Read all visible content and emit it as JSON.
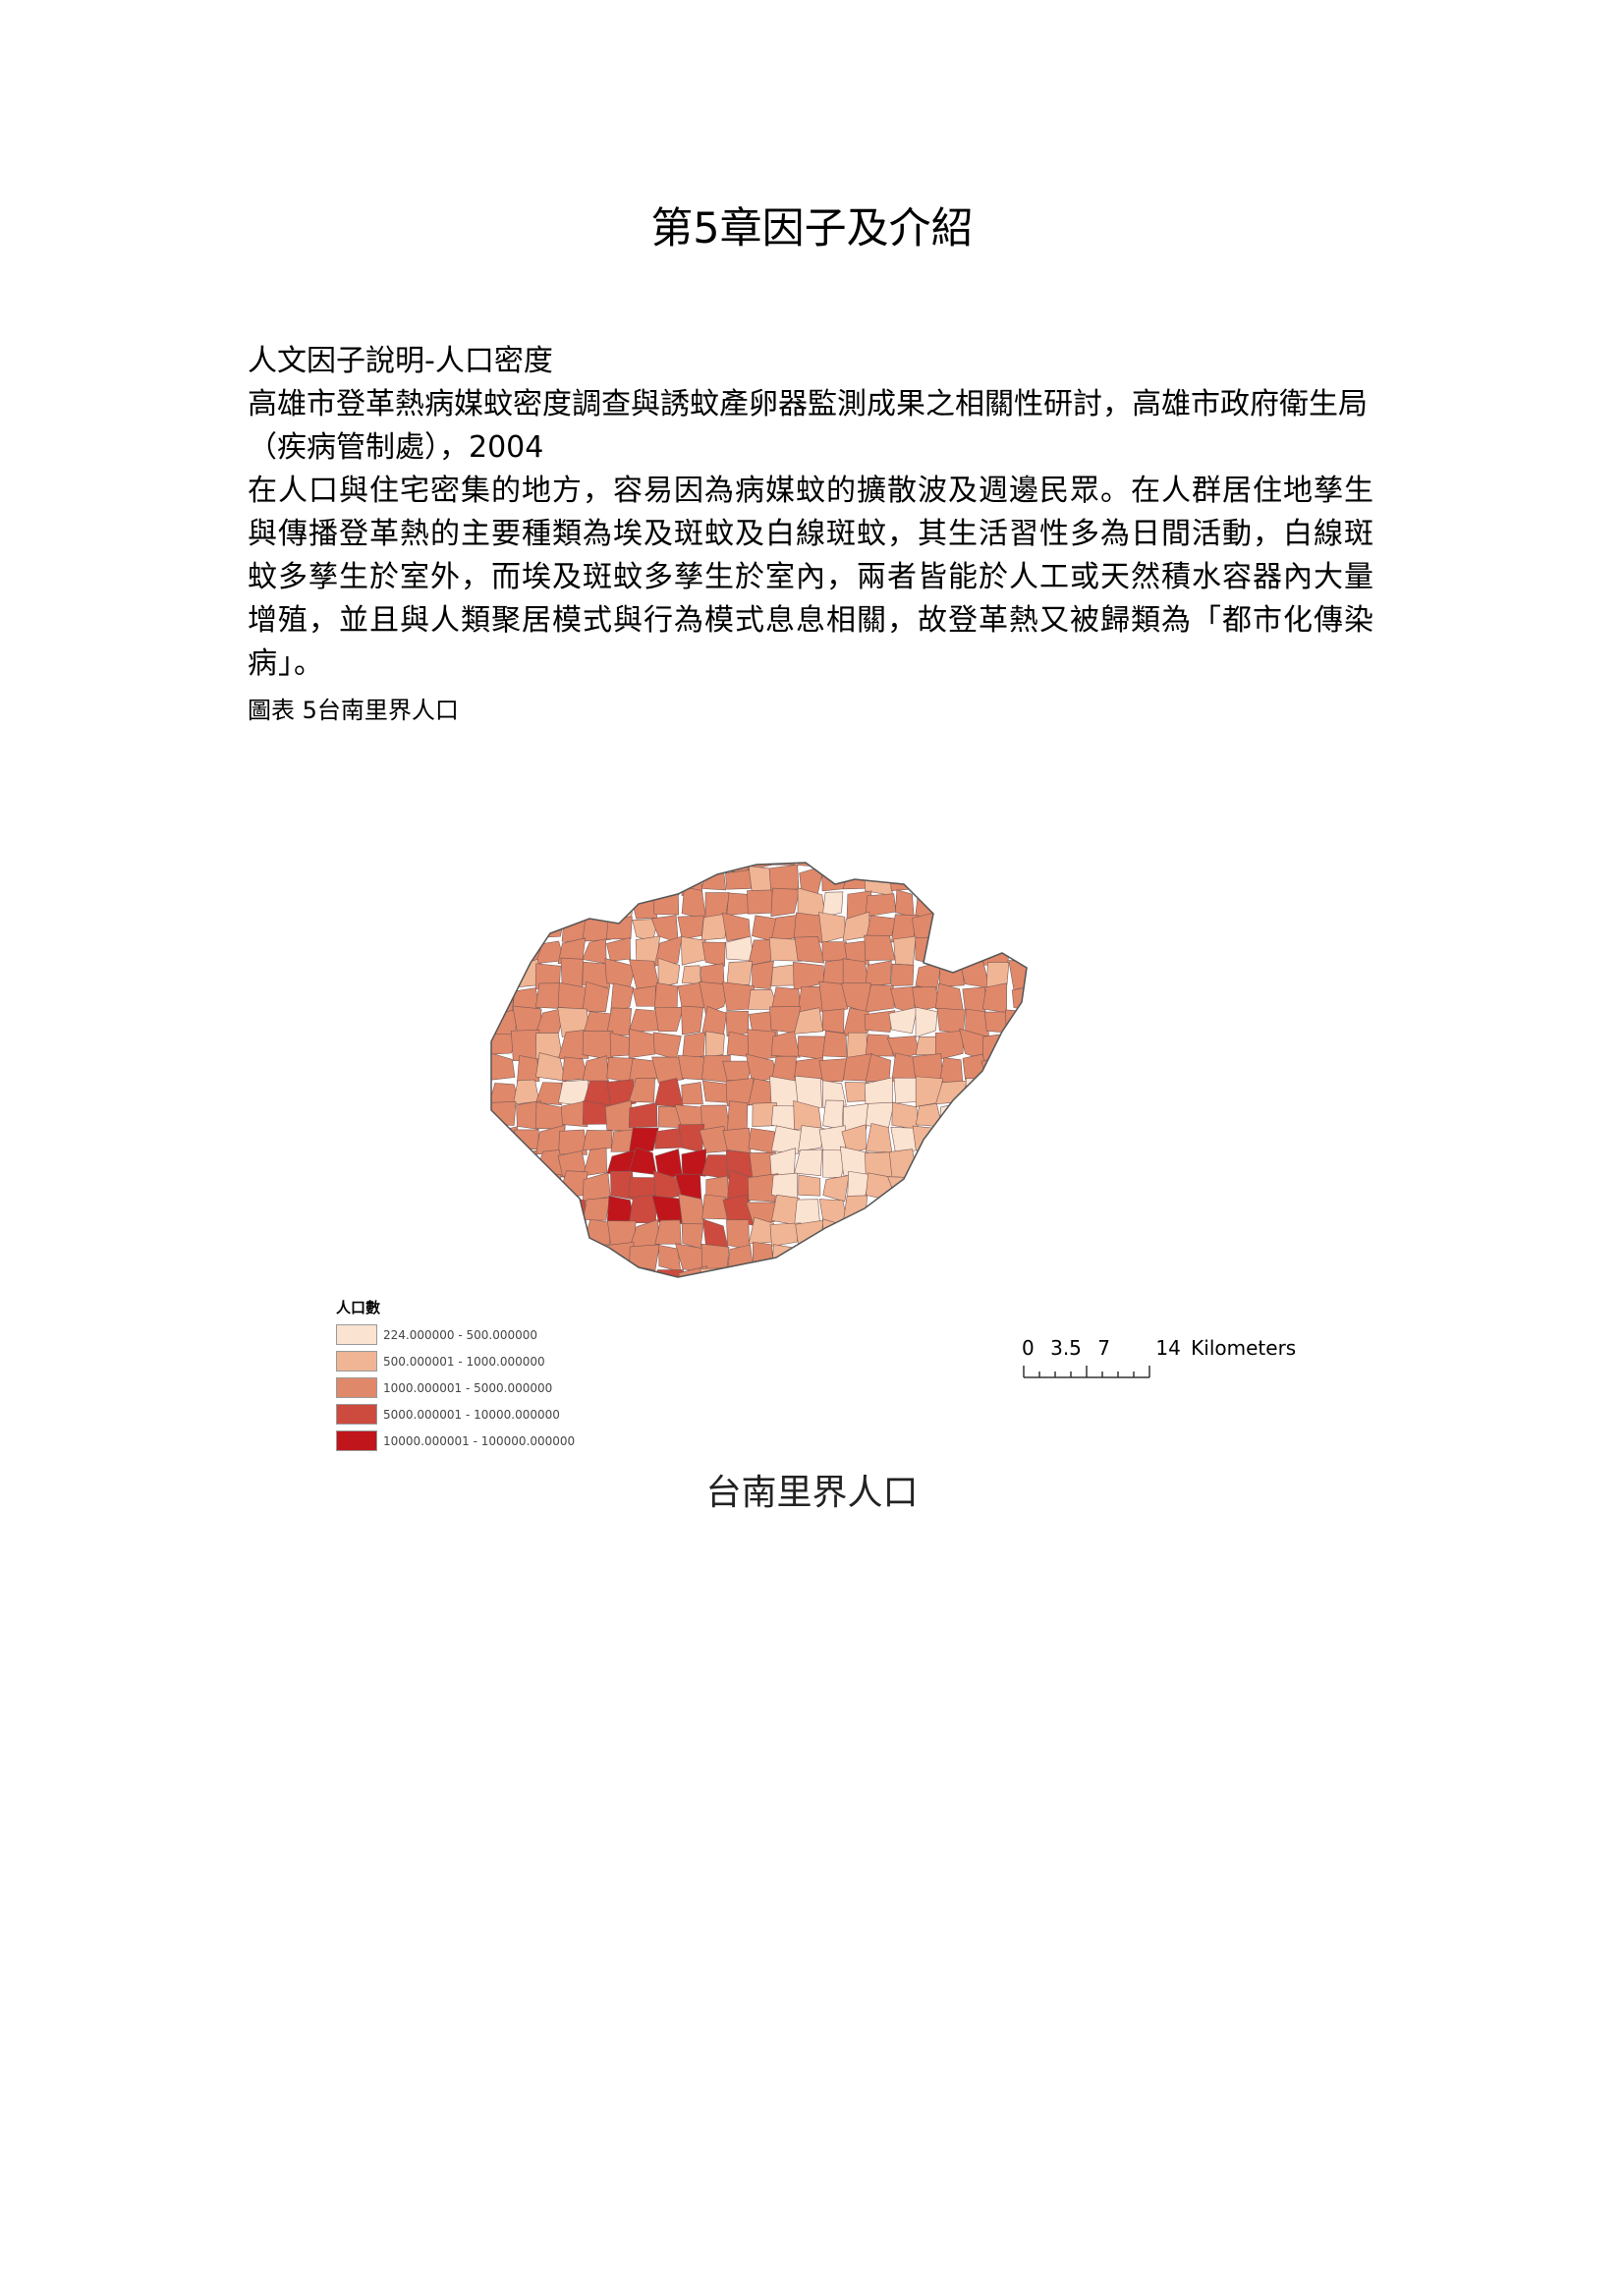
{
  "page_title": "第5章因子及介紹",
  "subtitle": "人文因子說明-人口密度",
  "reference": "高雄市登革熱病媒蚊密度調查與誘蚊產卵器監測成果之相關性研討，高雄市政府衛生局（疾病管制處），2004",
  "body": "在人口與住宅密集的地方，容易因為病媒蚊的擴散波及週邊民眾。在人群居住地孳生與傳播登革熱的主要種類為埃及斑蚊及白線斑蚊，其生活習性多為日間活動，白線斑蚊多孳生於室外，而埃及斑蚊多孳生於室內，兩者皆能於人工或天然積水容器內大量增殖，並且與人類聚居模式與行為模式息息相關，故登革熱又被歸類為「都市化傳染病」。",
  "figure_caption": "圖表 5台南里界人口",
  "legend": {
    "title": "人口數",
    "items": [
      {
        "label": "224.000000 - 500.000000",
        "color": "#fbe3d2"
      },
      {
        "label": "500.000001 - 1000.000000",
        "color": "#f0b594"
      },
      {
        "label": "1000.000001 - 5000.000000",
        "color": "#e0886a"
      },
      {
        "label": "5000.000001 - 10000.000000",
        "color": "#cd4a3e"
      },
      {
        "label": "10000.000001 - 100000.000000",
        "color": "#c0151b"
      }
    ]
  },
  "scale": {
    "ticks": [
      "0",
      "3.5",
      "7",
      "14"
    ],
    "unit": "Kilometers"
  },
  "map_title": "台南里界人口"
}
